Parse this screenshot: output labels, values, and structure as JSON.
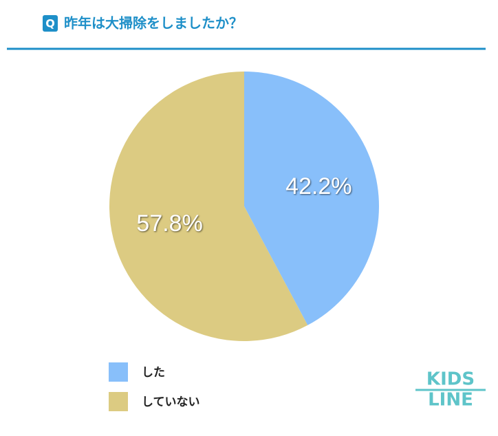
{
  "header": {
    "badge": "Q"
  },
  "chart_data": {
    "type": "pie",
    "title": "昨年は大掃除をしましたか？",
    "categories": [
      "した",
      "していない"
    ],
    "values": [
      42.2,
      57.8
    ],
    "value_labels": [
      "42.2%",
      "57.8%"
    ],
    "colors": [
      "#88bffa",
      "#dccb82"
    ]
  },
  "logo": {
    "line1": "KIDS",
    "line2": "LINE"
  }
}
